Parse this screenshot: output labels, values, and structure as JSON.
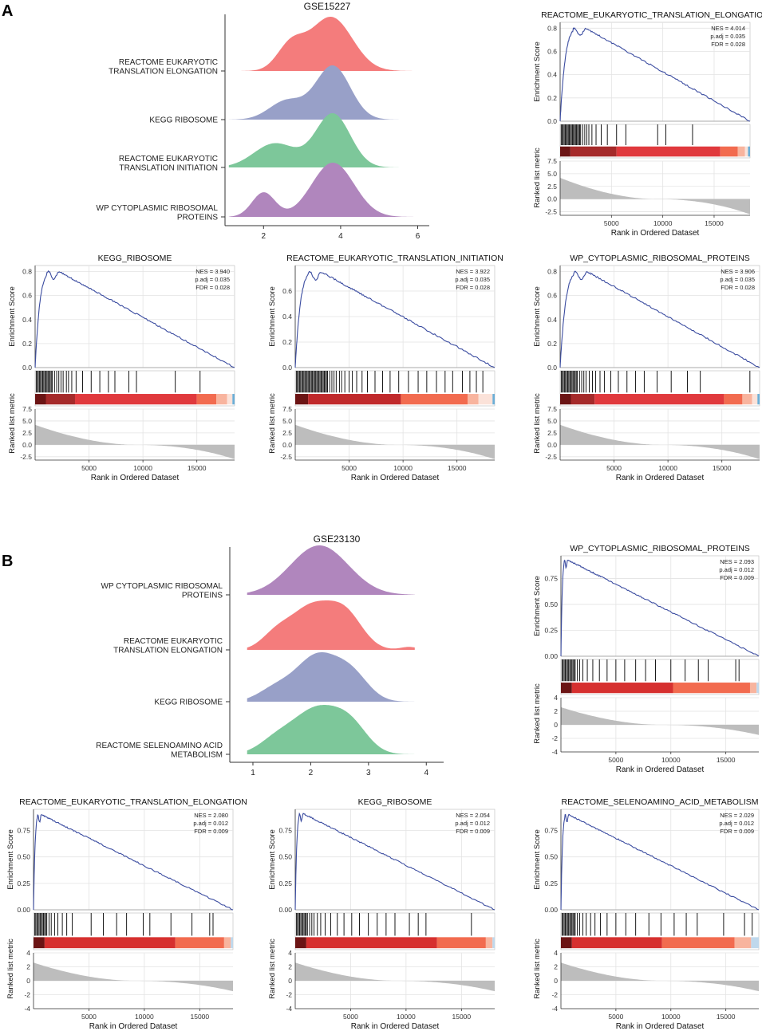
{
  "chart_data": [
    {
      "panel": "A",
      "type": "ridgeline",
      "title": "GSE15227",
      "xticks": [
        2,
        4,
        6
      ],
      "xlim": [
        1,
        6.3
      ],
      "series": [
        {
          "label_lines": [
            "REACTOME EUKARYOTIC",
            "TRANSLATION ELONGATION"
          ],
          "color": "#F47C7C",
          "peaks": [
            [
              2.7,
              0.35,
              0.45
            ],
            [
              3.75,
              0.55,
              1.0
            ]
          ]
        },
        {
          "label_lines": [
            "KEGG RIBOSOME"
          ],
          "color": "#98A0C8",
          "peaks": [
            [
              2.6,
              0.45,
              0.35
            ],
            [
              3.8,
              0.45,
              1.0
            ]
          ]
        },
        {
          "label_lines": [
            "REACTOME EUKARYOTIC",
            "TRANSLATION INITIATION"
          ],
          "color": "#7DC79A",
          "peaks": [
            [
              2.3,
              0.55,
              0.45
            ],
            [
              3.8,
              0.45,
              1.0
            ]
          ]
        },
        {
          "label_lines": [
            "WP CYTOPLASMIC RIBOSOMAL",
            "PROTEINS"
          ],
          "color": "#B086BD",
          "peaks": [
            [
              2.0,
              0.3,
              0.45
            ],
            [
              3.8,
              0.55,
              1.0
            ]
          ]
        }
      ]
    },
    {
      "panel": "A",
      "type": "gsea",
      "title": "REACTOME_EUKARYOTIC_TRANSLATION_ELONGATION",
      "stats": [
        "NES = 4.014",
        "p.adj = 0.035",
        "FDR = 0.028"
      ],
      "es_ylim": [
        0,
        0.85
      ],
      "es_ticks": [
        "0.0",
        "0.2",
        "0.4",
        "0.6",
        "0.8"
      ],
      "es_tick_values": [
        0,
        0.2,
        0.4,
        0.6,
        0.8
      ],
      "peak_es": 0.8,
      "peak_rank": 2500,
      "metric_ylim": [
        -3.2,
        7.5
      ],
      "metric_ticks": [
        "7.5",
        "5.0",
        "2.5",
        "0.0",
        "-2.5"
      ],
      "metric_tick_values": [
        7.5,
        5.0,
        2.5,
        0.0,
        -2.5
      ],
      "metric_start": 4.2,
      "metric_end": -3.0,
      "xlim": [
        1,
        18500
      ],
      "xticks": [
        5000,
        10000,
        15000
      ],
      "xlabel": "Rank in Ordered Dataset",
      "ylabel_es": "Enrichment Score",
      "ylabel_metric": "Ranked list metric",
      "hits": [
        100,
        200,
        300,
        400,
        500,
        600,
        700,
        800,
        900,
        1000,
        1100,
        1200,
        1300,
        1400,
        1500,
        1600,
        1700,
        1800,
        1900,
        2000,
        2200,
        2400,
        2600,
        2800,
        3100,
        3500,
        4000,
        4600,
        5500,
        6400,
        9500,
        10300,
        12900
      ],
      "color_segments": [
        [
          0,
          1000,
          "#6B1414"
        ],
        [
          1000,
          5500,
          "#A52A2A"
        ],
        [
          5500,
          15600,
          "#E0393D"
        ],
        [
          15600,
          17300,
          "#F26B4F"
        ],
        [
          17300,
          18000,
          "#F8B49E"
        ],
        [
          18000,
          18300,
          "#FBE2D9"
        ],
        [
          18300,
          18500,
          "#6BAED6"
        ]
      ]
    },
    {
      "panel": "A",
      "type": "gsea",
      "title": "KEGG_RIBOSOME",
      "stats": [
        "NES = 3.940",
        "p.adj = 0.035",
        "FDR = 0.028"
      ],
      "es_ylim": [
        0,
        0.85
      ],
      "es_ticks": [
        "0.0",
        "0.2",
        "0.4",
        "0.6",
        "0.8"
      ],
      "es_tick_values": [
        0,
        0.2,
        0.4,
        0.6,
        0.8
      ],
      "peak_es": 0.8,
      "peak_rank": 2200,
      "metric_ylim": [
        -3.2,
        7.5
      ],
      "metric_ticks": [
        "7.5",
        "5.0",
        "2.5",
        "0.0",
        "-2.5"
      ],
      "metric_tick_values": [
        7.5,
        5.0,
        2.5,
        0.0,
        -2.5
      ],
      "metric_start": 4.2,
      "metric_end": -3.0,
      "xlim": [
        1,
        18500
      ],
      "xticks": [
        5000,
        10000,
        15000
      ],
      "xlabel": "Rank in Ordered Dataset",
      "ylabel_es": "Enrichment Score",
      "ylabel_metric": "Ranked list metric",
      "hits": [
        100,
        200,
        300,
        400,
        500,
        600,
        700,
        800,
        900,
        1000,
        1100,
        1200,
        1300,
        1400,
        1500,
        1600,
        1800,
        2000,
        2200,
        2400,
        2600,
        2900,
        3100,
        3400,
        3800,
        4400,
        5200,
        6000,
        6800,
        7400,
        8700,
        9400,
        13000,
        15300
      ],
      "color_segments": [
        [
          0,
          1000,
          "#6B1414"
        ],
        [
          1000,
          3700,
          "#A52A2A"
        ],
        [
          3700,
          15000,
          "#E0393D"
        ],
        [
          15000,
          16800,
          "#F26B4F"
        ],
        [
          16800,
          17800,
          "#F8B49E"
        ],
        [
          17800,
          18300,
          "#FBE2D9"
        ],
        [
          18300,
          18500,
          "#6BAED6"
        ]
      ]
    },
    {
      "panel": "A",
      "type": "gsea",
      "title": "REACTOME_EUKARYOTIC_TRANSLATION_INITIATION",
      "stats": [
        "NES = 3.922",
        "p.adj = 0.035",
        "FDR = 0.028"
      ],
      "es_ylim": [
        0,
        0.8
      ],
      "es_ticks": [
        "0.0",
        "0.2",
        "0.4",
        "0.6"
      ],
      "es_tick_values": [
        0,
        0.2,
        0.4,
        0.6
      ],
      "peak_es": 0.75,
      "peak_rank": 2400,
      "metric_ylim": [
        -3.2,
        7.5
      ],
      "metric_ticks": [
        "7.5",
        "5.0",
        "2.5",
        "0.0",
        "-2.5"
      ],
      "metric_tick_values": [
        7.5,
        5.0,
        2.5,
        0.0,
        -2.5
      ],
      "metric_start": 4.2,
      "metric_end": -3.0,
      "xlim": [
        1,
        18500
      ],
      "xticks": [
        5000,
        10000,
        15000
      ],
      "xlabel": "Rank in Ordered Dataset",
      "ylabel_es": "Enrichment Score",
      "ylabel_metric": "Ranked list metric",
      "hits": [
        100,
        200,
        300,
        400,
        500,
        600,
        700,
        800,
        900,
        1000,
        1100,
        1200,
        1300,
        1400,
        1500,
        1600,
        1700,
        1800,
        1900,
        2000,
        2100,
        2200,
        2300,
        2400,
        2500,
        2600,
        2700,
        2800,
        2900,
        3000,
        3200,
        3400,
        3600,
        3800,
        4100,
        4300,
        4600,
        5000,
        5300,
        5700,
        6200,
        6700,
        7400,
        8100,
        8800,
        9600,
        10500,
        11400,
        12200,
        13100,
        13900,
        14600,
        15500,
        16200,
        16800,
        17400
      ],
      "color_segments": [
        [
          0,
          1200,
          "#6B1414"
        ],
        [
          1200,
          9800,
          "#C0292B"
        ],
        [
          9800,
          16000,
          "#F26B4F"
        ],
        [
          16000,
          17000,
          "#F8B49E"
        ],
        [
          17000,
          18300,
          "#FBE2D9"
        ],
        [
          18300,
          18500,
          "#6BAED6"
        ]
      ]
    },
    {
      "panel": "A",
      "type": "gsea",
      "title": "WP_CYTOPLASMIC_RIBOSOMAL_PROTEINS",
      "stats": [
        "NES = 3.906",
        "p.adj = 0.035",
        "FDR = 0.028"
      ],
      "es_ylim": [
        0,
        0.85
      ],
      "es_ticks": [
        "0.0",
        "0.2",
        "0.4",
        "0.6",
        "0.8"
      ],
      "es_tick_values": [
        0,
        0.2,
        0.4,
        0.6,
        0.8
      ],
      "peak_es": 0.8,
      "peak_rank": 2500,
      "metric_ylim": [
        -3.2,
        7.5
      ],
      "metric_ticks": [
        "7.5",
        "5.0",
        "2.5",
        "0.0",
        "-2.5"
      ],
      "metric_tick_values": [
        7.5,
        5.0,
        2.5,
        0.0,
        -2.5
      ],
      "metric_start": 4.2,
      "metric_end": -3.0,
      "xlim": [
        1,
        18500
      ],
      "xticks": [
        5000,
        10000,
        15000
      ],
      "xlabel": "Rank in Ordered Dataset",
      "ylabel_es": "Enrichment Score",
      "ylabel_metric": "Ranked list metric",
      "hits": [
        100,
        200,
        300,
        400,
        500,
        600,
        700,
        800,
        900,
        1000,
        1100,
        1200,
        1300,
        1400,
        1500,
        1600,
        1800,
        2000,
        2200,
        2400,
        2700,
        3000,
        3300,
        3700,
        4100,
        4700,
        5400,
        6200,
        7000,
        7800,
        9000,
        10300,
        11800,
        13000,
        17600
      ],
      "color_segments": [
        [
          0,
          1000,
          "#6B1414"
        ],
        [
          1000,
          3200,
          "#A52A2A"
        ],
        [
          3200,
          15200,
          "#E0393D"
        ],
        [
          15200,
          16900,
          "#F26B4F"
        ],
        [
          16900,
          17800,
          "#F8B49E"
        ],
        [
          17800,
          18300,
          "#FBE2D9"
        ],
        [
          18300,
          18500,
          "#6BAED6"
        ]
      ]
    },
    {
      "panel": "B",
      "type": "ridgeline",
      "title": "GSE23130",
      "xticks": [
        1,
        2,
        3,
        4
      ],
      "xlim": [
        0.6,
        4.3
      ],
      "series": [
        {
          "label_lines": [
            "WP CYTOPLASMIC RIBOSOMAL",
            "PROTEINS"
          ],
          "color": "#B086BD",
          "peaks": [
            [
              2.15,
              0.5,
              1.0
            ]
          ]
        },
        {
          "label_lines": [
            "REACTOME EUKARYOTIC",
            "TRANSLATION ELONGATION"
          ],
          "color": "#F47C7C",
          "peaks": [
            [
              2.0,
              0.35,
              0.85
            ],
            [
              2.6,
              0.3,
              0.7
            ],
            [
              1.4,
              0.25,
              0.3
            ],
            [
              3.7,
              0.15,
              0.06
            ]
          ]
        },
        {
          "label_lines": [
            "KEGG RIBOSOME"
          ],
          "color": "#98A0C8",
          "peaks": [
            [
              2.1,
              0.35,
              1.0
            ],
            [
              2.7,
              0.3,
              0.6
            ],
            [
              1.4,
              0.3,
              0.3
            ]
          ]
        },
        {
          "label_lines": [
            "REACTOME SELENOAMINO ACID",
            "METABOLISM"
          ],
          "color": "#7DC79A",
          "peaks": [
            [
              2.1,
              0.4,
              1.0
            ],
            [
              2.7,
              0.3,
              0.55
            ],
            [
              1.4,
              0.3,
              0.3
            ]
          ]
        }
      ]
    },
    {
      "panel": "B",
      "type": "gsea",
      "title": "WP_CYTOPLASMIC_RIBOSOMAL_PROTEINS",
      "stats": [
        "NES = 2.093",
        "p.adj = 0.012",
        "FDR = 0.009"
      ],
      "es_ylim": [
        0,
        0.97
      ],
      "es_ticks": [
        "0.00",
        "0.25",
        "0.50",
        "0.75"
      ],
      "es_tick_values": [
        0,
        0.25,
        0.5,
        0.75
      ],
      "peak_es": 0.93,
      "peak_rank": 600,
      "metric_ylim": [
        -4,
        4
      ],
      "metric_ticks": [
        "4",
        "2",
        "0",
        "-2",
        "-4"
      ],
      "metric_tick_values": [
        4,
        2,
        0,
        -2,
        -4
      ],
      "metric_start": 2.6,
      "metric_end": -1.5,
      "xlim": [
        1,
        18000
      ],
      "xticks": [
        5000,
        10000,
        15000
      ],
      "xlabel": "Rank in Ordered Dataset",
      "ylabel_es": "Enrichment Score",
      "ylabel_metric": "Ranked list metric",
      "hits": [
        100,
        200,
        300,
        400,
        500,
        600,
        700,
        800,
        900,
        1000,
        1100,
        1200,
        1300,
        1500,
        1700,
        2000,
        2400,
        2900,
        3500,
        4200,
        5000,
        5800,
        6800,
        7700,
        8600,
        10000,
        11300,
        12500,
        13400,
        15900,
        16200
      ],
      "color_segments": [
        [
          0,
          1000,
          "#6B1414"
        ],
        [
          1000,
          10200,
          "#D6302F"
        ],
        [
          10200,
          17200,
          "#F26B4F"
        ],
        [
          17200,
          17800,
          "#F8B49E"
        ],
        [
          17800,
          18000,
          "#BFD8EC"
        ]
      ]
    },
    {
      "panel": "B",
      "type": "gsea",
      "title": "REACTOME_EUKARYOTIC_TRANSLATION_ELONGATION",
      "stats": [
        "NES = 2.080",
        "p.adj = 0.012",
        "FDR = 0.009"
      ],
      "es_ylim": [
        0,
        0.95
      ],
      "es_ticks": [
        "0.00",
        "0.25",
        "0.50",
        "0.75"
      ],
      "es_tick_values": [
        0,
        0.25,
        0.5,
        0.75
      ],
      "peak_es": 0.9,
      "peak_rank": 700,
      "metric_ylim": [
        -4,
        4
      ],
      "metric_ticks": [
        "4",
        "2",
        "0",
        "-2",
        "-4"
      ],
      "metric_tick_values": [
        4,
        2,
        0,
        -2,
        -4
      ],
      "metric_start": 2.6,
      "metric_end": -1.5,
      "xlim": [
        1,
        18000
      ],
      "xticks": [
        5000,
        10000,
        15000
      ],
      "xlabel": "Rank in Ordered Dataset",
      "ylabel_es": "Enrichment Score",
      "ylabel_metric": "Ranked list metric",
      "hits": [
        100,
        200,
        300,
        400,
        500,
        600,
        700,
        800,
        900,
        1000,
        1100,
        1200,
        1400,
        1600,
        1900,
        2200,
        2600,
        3000,
        3500,
        5200,
        6300,
        7500,
        8400,
        9900,
        10500,
        12400,
        14300,
        15900,
        16200
      ],
      "color_segments": [
        [
          0,
          1000,
          "#6B1414"
        ],
        [
          1000,
          12800,
          "#D6302F"
        ],
        [
          12800,
          17200,
          "#F26B4F"
        ],
        [
          17200,
          17800,
          "#F8B49E"
        ],
        [
          17800,
          18000,
          "#BFD8EC"
        ]
      ]
    },
    {
      "panel": "B",
      "type": "gsea",
      "title": "KEGG_RIBOSOME",
      "stats": [
        "NES = 2.054",
        "p.adj = 0.012",
        "FDR = 0.009"
      ],
      "es_ylim": [
        0,
        0.95
      ],
      "es_ticks": [
        "0.00",
        "0.25",
        "0.50",
        "0.75"
      ],
      "es_tick_values": [
        0,
        0.25,
        0.5,
        0.75
      ],
      "peak_es": 0.91,
      "peak_rank": 700,
      "metric_ylim": [
        -4,
        4
      ],
      "metric_ticks": [
        "4",
        "2",
        "0",
        "-2",
        "-4"
      ],
      "metric_tick_values": [
        4,
        2,
        0,
        -2,
        -4
      ],
      "metric_start": 2.6,
      "metric_end": -1.5,
      "xlim": [
        1,
        18000
      ],
      "xticks": [
        5000,
        10000,
        15000
      ],
      "xlabel": "Rank in Ordered Dataset",
      "ylabel_es": "Enrichment Score",
      "ylabel_metric": "Ranked list metric",
      "hits": [
        100,
        200,
        300,
        400,
        500,
        600,
        700,
        800,
        900,
        1000,
        1100,
        1300,
        1500,
        1700,
        2000,
        2300,
        2700,
        3200,
        3800,
        4400,
        5100,
        5800,
        6600,
        7400,
        8200,
        9000,
        10300,
        11100,
        11800,
        15900
      ],
      "color_segments": [
        [
          0,
          1000,
          "#6B1414"
        ],
        [
          1000,
          12800,
          "#D6302F"
        ],
        [
          12800,
          17200,
          "#F26B4F"
        ],
        [
          17200,
          17800,
          "#F8B49E"
        ],
        [
          17800,
          18000,
          "#BFD8EC"
        ]
      ]
    },
    {
      "panel": "B",
      "type": "gsea",
      "title": "REACTOME_SELENOAMINO_ACID_METABOLISM",
      "stats": [
        "NES = 2.029",
        "p.adj = 0.012",
        "FDR = 0.009"
      ],
      "es_ylim": [
        0,
        0.95
      ],
      "es_ticks": [
        "0.00",
        "0.25",
        "0.50",
        "0.75"
      ],
      "es_tick_values": [
        0,
        0.25,
        0.5,
        0.75
      ],
      "peak_es": 0.9,
      "peak_rank": 700,
      "metric_ylim": [
        -4,
        4
      ],
      "metric_ticks": [
        "4",
        "2",
        "0",
        "-2",
        "-4"
      ],
      "metric_tick_values": [
        4,
        2,
        0,
        -2,
        -4
      ],
      "metric_start": 2.6,
      "metric_end": -1.5,
      "xlim": [
        1,
        18000
      ],
      "xticks": [
        5000,
        10000,
        15000
      ],
      "xlabel": "Rank in Ordered Dataset",
      "ylabel_es": "Enrichment Score",
      "ylabel_metric": "Ranked list metric",
      "hits": [
        100,
        200,
        300,
        400,
        500,
        600,
        700,
        800,
        900,
        1000,
        1100,
        1200,
        1300,
        1500,
        1700,
        2000,
        2300,
        2700,
        3100,
        3600,
        4200,
        5000,
        5900,
        6800,
        8000,
        9100,
        10300,
        11400,
        12400,
        14800,
        16700,
        17400
      ],
      "color_segments": [
        [
          0,
          1000,
          "#6B1414"
        ],
        [
          1000,
          9200,
          "#D6302F"
        ],
        [
          9200,
          15800,
          "#F26B4F"
        ],
        [
          15800,
          17300,
          "#F8B49E"
        ],
        [
          17300,
          18000,
          "#BFD8EC"
        ]
      ]
    }
  ],
  "panel_labels": [
    "A",
    "B"
  ],
  "colors": {
    "es_line": "#3B4CA0",
    "metric_fill": "#BDBDBD",
    "grid": "#E3E3E3",
    "axis": "#333333"
  }
}
